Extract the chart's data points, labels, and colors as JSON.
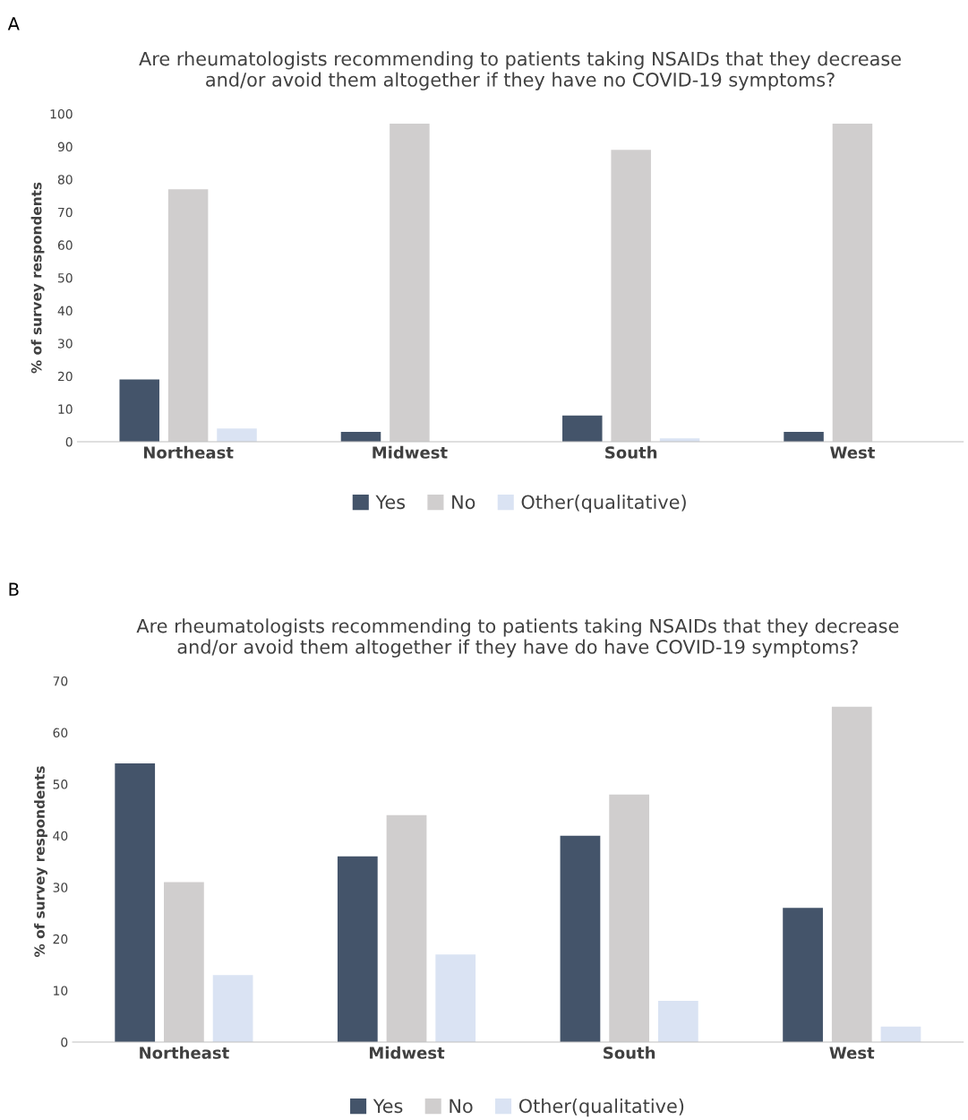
{
  "chart_data": [
    {
      "type": "bar",
      "title": "Are rheumatologists recommending to patients taking NSAIDs that they decrease\nand/or avoid them altogether if they have no COVID-19 symptoms?",
      "ylabel": "% of survey respondents",
      "annotations": [
        "A"
      ],
      "categories": [
        "Northeast",
        "Midwest",
        "South",
        "West"
      ],
      "series": [
        {
          "name": "Yes",
          "color": "#44546a",
          "values": [
            19,
            3,
            8,
            3
          ]
        },
        {
          "name": "No",
          "color": "#d0cece",
          "values": [
            77,
            97,
            89,
            97
          ]
        },
        {
          "name": "Other(qualitative)",
          "color": "#dae3f3",
          "values": [
            4,
            0,
            1,
            0
          ]
        }
      ],
      "ylim": [
        0,
        100
      ],
      "yticks": [
        0,
        10,
        20,
        30,
        40,
        50,
        60,
        70,
        80,
        90,
        100
      ],
      "grid": false,
      "legend": "bottom"
    },
    {
      "type": "bar",
      "title": "Are rheumatologists recommending to patients taking NSAIDs that they decrease\nand/or avoid them altogether if they have do have COVID-19 symptoms?",
      "ylabel": "% of survey respondents",
      "annotations": [
        "B"
      ],
      "categories": [
        "Northeast",
        "Midwest",
        "South",
        "West"
      ],
      "series": [
        {
          "name": "Yes",
          "color": "#44546a",
          "values": [
            54,
            36,
            40,
            26
          ]
        },
        {
          "name": "No",
          "color": "#d0cece",
          "values": [
            31,
            44,
            48,
            65
          ]
        },
        {
          "name": "Other(qualitative)",
          "color": "#dae3f3",
          "values": [
            13,
            17,
            8,
            3
          ]
        }
      ],
      "ylim": [
        0,
        70
      ],
      "yticks": [
        0,
        10,
        20,
        30,
        40,
        50,
        60,
        70
      ],
      "grid": false,
      "legend": "bottom"
    }
  ]
}
